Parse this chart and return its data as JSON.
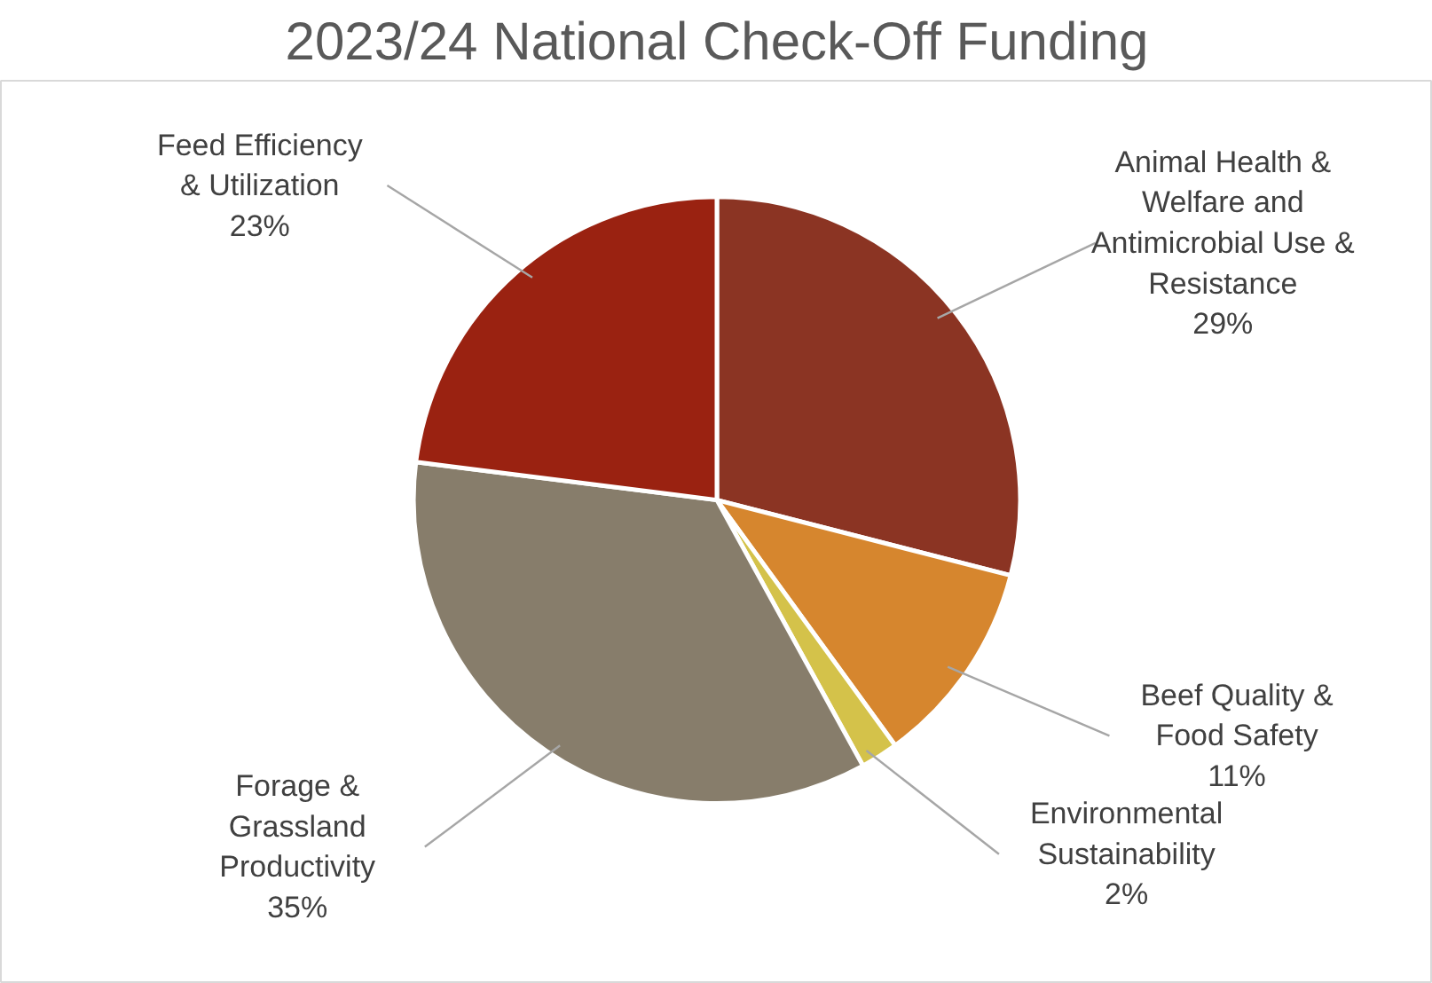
{
  "chart_data": {
    "type": "pie",
    "title": "2023/24 National Check-Off Funding",
    "categories": [
      "Animal Health &\nWelfare and\nAntimicrobial Use &\nResistance",
      "Beef Quality &\nFood Safety",
      "Environmental\nSustainability",
      "Forage &\nGrassland\nProductivity",
      "Feed Efficiency\n& Utilization"
    ],
    "values": [
      29,
      11,
      2,
      35,
      23
    ],
    "value_labels": [
      "29%",
      "11%",
      "2%",
      "35%",
      "23%"
    ],
    "colors": [
      "#8b3423",
      "#d6862e",
      "#d4c24a",
      "#877d6b",
      "#9a2211"
    ]
  }
}
